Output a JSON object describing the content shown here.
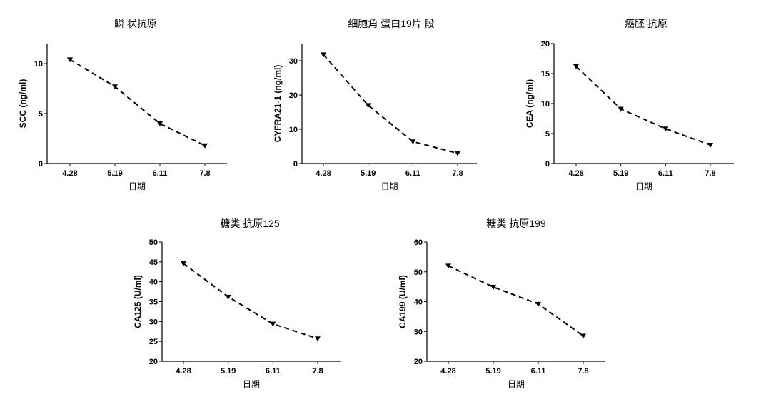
{
  "chart_data": [
    {
      "type": "line",
      "title": "鳞 状抗原",
      "xlabel": "日期",
      "ylabel": "SCC (ng/ml)",
      "categories": [
        "4.28",
        "5.19",
        "6.11",
        "7.8"
      ],
      "series": [
        {
          "name": "SCC",
          "values": [
            10.4,
            7.7,
            4.0,
            1.8
          ]
        }
      ],
      "ylim": [
        0,
        12
      ],
      "yticks": [
        0,
        5,
        10
      ],
      "marker": "triangle-down",
      "line_style": "dashed"
    },
    {
      "type": "line",
      "title": "细胞角 蛋白19片 段",
      "xlabel": "日期",
      "ylabel": "CYFRA21-1 (ng/ml)",
      "categories": [
        "4.28",
        "5.19",
        "6.11",
        "7.8"
      ],
      "series": [
        {
          "name": "CYFRA21-1",
          "values": [
            31.8,
            17.0,
            6.4,
            3.0
          ]
        }
      ],
      "ylim": [
        0,
        35
      ],
      "yticks": [
        0,
        10,
        20,
        30
      ],
      "marker": "triangle-down",
      "line_style": "dashed"
    },
    {
      "type": "line",
      "title": "癌胚 抗原",
      "xlabel": "日期",
      "ylabel": "CEA (ng/ml)",
      "categories": [
        "4.28",
        "5.19",
        "6.11",
        "7.8"
      ],
      "series": [
        {
          "name": "CEA",
          "values": [
            16.2,
            9.1,
            5.8,
            3.1
          ]
        }
      ],
      "ylim": [
        0,
        20
      ],
      "yticks": [
        0,
        5,
        10,
        15,
        20
      ],
      "marker": "triangle-down",
      "line_style": "dashed"
    },
    {
      "type": "line",
      "title": "糖类 抗原125",
      "xlabel": "日期",
      "ylabel": "CA125 (U/ml)",
      "categories": [
        "4.28",
        "5.19",
        "6.11",
        "7.8"
      ],
      "series": [
        {
          "name": "CA125",
          "values": [
            44.6,
            36.2,
            29.4,
            25.7
          ]
        }
      ],
      "ylim": [
        20,
        50
      ],
      "yticks": [
        20,
        25,
        30,
        35,
        40,
        45,
        50
      ],
      "marker": "triangle-down",
      "line_style": "dashed"
    },
    {
      "type": "line",
      "title": "糖类 抗原199",
      "xlabel": "日期",
      "ylabel": "CA199 (U/ml)",
      "categories": [
        "4.28",
        "5.19",
        "6.11",
        "7.8"
      ],
      "series": [
        {
          "name": "CA199",
          "values": [
            52.0,
            44.9,
            39.2,
            28.5
          ]
        }
      ],
      "ylim": [
        20,
        60
      ],
      "yticks": [
        20,
        30,
        40,
        50,
        60
      ],
      "marker": "triangle-down",
      "line_style": "dashed"
    }
  ]
}
